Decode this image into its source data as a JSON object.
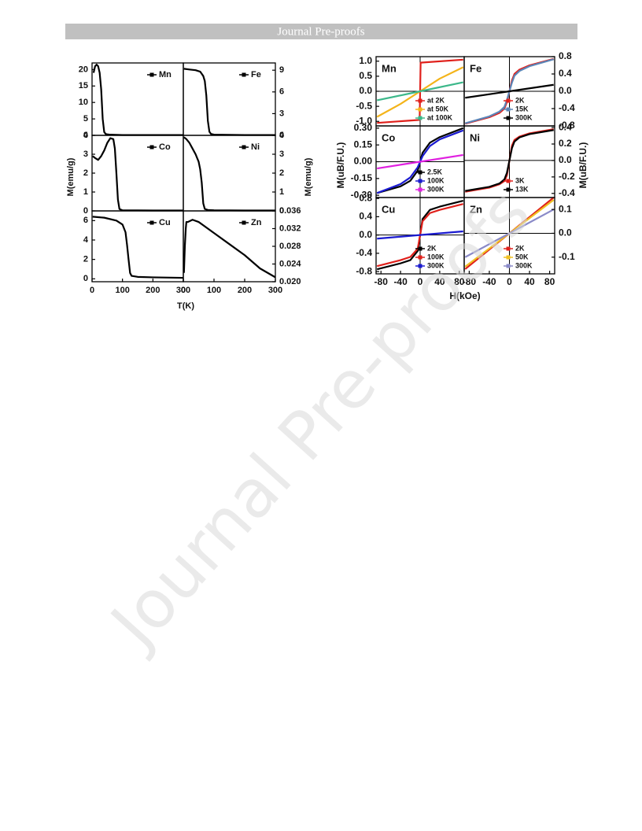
{
  "header": "Journal Pre-proofs",
  "watermark": "Journal Pre-proofs",
  "chart_data": [
    {
      "type": "line",
      "legend": "upper right",
      "xlim": [
        0,
        300
      ],
      "ylim": [
        0,
        22
      ],
      "yticks": [
        0,
        5,
        10,
        15,
        20
      ],
      "yaxis_side": "left",
      "series": [
        {
          "name": "Mn",
          "color": "#000000",
          "x": [
            5,
            10,
            15,
            20,
            25,
            30,
            35,
            40,
            45,
            50,
            60,
            100,
            200,
            300
          ],
          "values": [
            19,
            21,
            21.5,
            21,
            19,
            14,
            5,
            1,
            0.4,
            0.3,
            0.2,
            0.1,
            0.1,
            0.1
          ]
        }
      ]
    },
    {
      "type": "line",
      "legend": "upper right",
      "xlim": [
        0,
        300
      ],
      "ylim": [
        0,
        10
      ],
      "yticks": [
        0,
        3,
        6,
        9
      ],
      "yaxis_side": "right",
      "series": [
        {
          "name": "Fe",
          "color": "#000000",
          "x": [
            2,
            20,
            40,
            55,
            65,
            70,
            75,
            80,
            85,
            90,
            100,
            200,
            300
          ],
          "values": [
            9.2,
            9.1,
            9.0,
            8.8,
            8.2,
            7.5,
            5.5,
            2,
            0.5,
            0.2,
            0.1,
            0.05,
            0.05
          ]
        }
      ]
    },
    {
      "type": "line",
      "legend": "upper right",
      "xlim": [
        0,
        300
      ],
      "ylim": [
        0,
        4
      ],
      "yticks": [
        0,
        1,
        2,
        3,
        4
      ],
      "yaxis_side": "left",
      "ylabel": "M(emu/g)",
      "series": [
        {
          "name": "Co",
          "color": "#000000",
          "x": [
            2,
            10,
            20,
            30,
            40,
            50,
            60,
            70,
            75,
            80,
            85,
            90,
            100,
            200,
            300
          ],
          "values": [
            2.9,
            2.8,
            2.7,
            2.9,
            3.2,
            3.6,
            3.85,
            3.8,
            3.3,
            2,
            0.6,
            0.1,
            0.03,
            0.02,
            0.02
          ]
        }
      ]
    },
    {
      "type": "line",
      "legend": "upper right",
      "xlim": [
        0,
        300
      ],
      "ylim": [
        0,
        4
      ],
      "yticks": [
        0,
        1,
        2,
        3,
        4
      ],
      "yaxis_side": "right",
      "ylabel": "M(emu/g)",
      "series": [
        {
          "name": "Ni",
          "color": "#000000",
          "x": [
            2,
            10,
            20,
            30,
            40,
            50,
            55,
            60,
            65,
            70,
            80,
            100,
            200,
            300
          ],
          "values": [
            3.9,
            3.8,
            3.6,
            3.3,
            3.0,
            2.6,
            2.2,
            1.5,
            0.4,
            0.1,
            0.05,
            0.03,
            0.02,
            0.02
          ]
        }
      ]
    },
    {
      "type": "line",
      "legend": "upper right",
      "xlim": [
        0,
        300
      ],
      "xticks": [
        0,
        100,
        200,
        300
      ],
      "ylim": [
        -0.3,
        7
      ],
      "yticks": [
        0,
        2,
        4,
        6
      ],
      "yaxis_side": "left",
      "xlabel": "T(K)",
      "series": [
        {
          "name": "Cu",
          "color": "#000000",
          "x": [
            2,
            40,
            80,
            100,
            110,
            115,
            120,
            125,
            130,
            150,
            200,
            300
          ],
          "values": [
            6.4,
            6.3,
            6.0,
            5.6,
            4.8,
            3.5,
            2,
            0.6,
            0.3,
            0.2,
            0.15,
            0.1
          ]
        }
      ]
    },
    {
      "type": "line",
      "legend": "upper right",
      "xlim": [
        0,
        300
      ],
      "xticks": [
        0,
        100,
        200,
        300
      ],
      "ylim": [
        0.02,
        0.036
      ],
      "yaxis_side": "right",
      "yticks": [
        {
          "value": 0.02,
          "label": "0.020"
        },
        0.024,
        0.028,
        0.032,
        0.036
      ],
      "series": [
        {
          "name": "Zn",
          "color": "#000000",
          "x": [
            2,
            5,
            8,
            10,
            15,
            30,
            50,
            100,
            150,
            200,
            250,
            300
          ],
          "values": [
            0.022,
            0.028,
            0.032,
            0.0335,
            0.0335,
            0.034,
            0.0335,
            0.031,
            0.0285,
            0.026,
            0.023,
            0.021
          ]
        }
      ]
    },
    {
      "type": "line",
      "label": "Mn",
      "legend": "lower right",
      "zero_lines": true,
      "xlim": [
        -90,
        90
      ],
      "ylim": [
        -1.15,
        1.15
      ],
      "yaxis_side": "left",
      "yticks": [
        {
          "value": -1,
          "label": "-1.0"
        },
        -0.5,
        {
          "value": 0,
          "label": "0.0"
        },
        0.5,
        {
          "value": 1,
          "label": "1.0"
        }
      ],
      "series": [
        {
          "name": "at 2K",
          "color": "#e0201b",
          "x": [
            -88,
            -1,
            1,
            88
          ],
          "values": [
            -1.05,
            -0.95,
            0.95,
            1.05
          ]
        },
        {
          "name": "at 50K",
          "color": "#f4b41a",
          "x": [
            -88,
            -40,
            0,
            40,
            88
          ],
          "values": [
            -0.85,
            -0.42,
            0,
            0.42,
            0.8
          ]
        },
        {
          "name": "at 100K",
          "color": "#3cb88a",
          "x": [
            -88,
            0,
            88
          ],
          "values": [
            -0.3,
            0,
            0.3
          ]
        }
      ]
    },
    {
      "type": "line",
      "label": "Fe",
      "legend": "lower right",
      "zero_lines": true,
      "xlim": [
        -90,
        90
      ],
      "ylim": [
        -0.8,
        0.8
      ],
      "yaxis_side": "right",
      "yticks": [
        -0.8,
        -0.4,
        {
          "value": 0,
          "label": "0.0"
        },
        0.4,
        0.8
      ],
      "series": [
        {
          "name": "2K",
          "color": "#e0201b",
          "x": [
            -88,
            -40,
            -20,
            -10,
            -5,
            0,
            5,
            10,
            20,
            40,
            88
          ],
          "values": [
            -0.75,
            -0.6,
            -0.5,
            -0.4,
            -0.25,
            0,
            0.25,
            0.4,
            0.5,
            0.6,
            0.75
          ]
        },
        {
          "name": "15K",
          "color": "#5b86b8",
          "x": [
            -88,
            -40,
            -20,
            -10,
            -5,
            0,
            5,
            10,
            20,
            40,
            88
          ],
          "values": [
            -0.74,
            -0.58,
            -0.47,
            -0.36,
            -0.2,
            0,
            0.2,
            0.36,
            0.47,
            0.58,
            0.74
          ]
        },
        {
          "name": "300K",
          "color": "#000000",
          "x": [
            -88,
            0,
            88
          ],
          "values": [
            -0.15,
            0,
            0.15
          ]
        }
      ]
    },
    {
      "type": "line",
      "label": "Co",
      "legend": "lower right",
      "zero_lines": true,
      "xlim": [
        -90,
        90
      ],
      "ylim": [
        -0.32,
        0.32
      ],
      "yaxis_side": "left",
      "ylabel": "M(uB/F.U.)",
      "yticks": [
        {
          "value": -0.3,
          "label": "-0.30"
        },
        {
          "value": -0.15,
          "label": "-0.15"
        },
        {
          "value": 0,
          "label": "0.00"
        },
        {
          "value": 0.15,
          "label": "0.15"
        },
        {
          "value": 0.3,
          "label": "0.30"
        }
      ],
      "series": [
        {
          "name": "2.5K",
          "color": "#000000",
          "x": [
            -88,
            -40,
            -20,
            -5,
            0,
            5,
            20,
            40,
            88
          ],
          "values": [
            -0.28,
            -0.22,
            -0.17,
            -0.08,
            0,
            0.08,
            0.17,
            0.22,
            0.3
          ]
        },
        {
          "name": "100K",
          "color": "#1a1ad0",
          "x": [
            -88,
            -40,
            -20,
            -5,
            0,
            5,
            20,
            40,
            88
          ],
          "values": [
            -0.28,
            -0.2,
            -0.14,
            -0.05,
            0,
            0.05,
            0.14,
            0.2,
            0.28
          ]
        },
        {
          "name": "300K",
          "color": "#e020e0",
          "x": [
            -88,
            0,
            88
          ],
          "values": [
            -0.06,
            0,
            0.06
          ]
        }
      ]
    },
    {
      "type": "line",
      "label": "Ni",
      "legend": "lower right",
      "zero_lines": true,
      "xlim": [
        -90,
        90
      ],
      "ylim": [
        -0.45,
        0.42
      ],
      "yaxis_side": "right",
      "ylabel": "M(uB/F.U.)",
      "yticks": [
        -0.4,
        -0.2,
        {
          "value": 0,
          "label": "0.0"
        },
        0.2,
        0.4
      ],
      "series": [
        {
          "name": "3K",
          "color": "#e0201b",
          "x": [
            -88,
            -40,
            -20,
            -10,
            -5,
            0,
            5,
            10,
            20,
            40,
            88
          ],
          "values": [
            -0.38,
            -0.33,
            -0.29,
            -0.25,
            -0.18,
            0,
            0.18,
            0.25,
            0.29,
            0.33,
            0.38
          ]
        },
        {
          "name": "13K",
          "color": "#000000",
          "x": [
            -88,
            -40,
            -20,
            -10,
            -5,
            0,
            5,
            10,
            20,
            40,
            88
          ],
          "values": [
            -0.37,
            -0.32,
            -0.28,
            -0.23,
            -0.15,
            0,
            0.15,
            0.23,
            0.28,
            0.32,
            0.37
          ]
        }
      ]
    },
    {
      "type": "line",
      "label": "Cu",
      "legend": "lower right",
      "zero_lines": true,
      "xlim": [
        -90,
        90
      ],
      "xticks": [
        -80,
        -40,
        0,
        40,
        80
      ],
      "ylim": [
        -0.85,
        0.82
      ],
      "yaxis_side": "left",
      "xlabel": "H(kOe)",
      "yticks": [
        -0.8,
        -0.4,
        {
          "value": 0,
          "label": "0.0"
        },
        0.4,
        0.8
      ],
      "series": [
        {
          "name": "2K",
          "color": "#000000",
          "x": [
            -88,
            -40,
            -20,
            -5,
            0,
            5,
            20,
            40,
            88
          ],
          "values": [
            -0.75,
            -0.62,
            -0.55,
            -0.35,
            0,
            0.35,
            0.55,
            0.62,
            0.75
          ]
        },
        {
          "name": "100K",
          "color": "#e0201b",
          "x": [
            -88,
            -40,
            -20,
            -5,
            0,
            5,
            20,
            40,
            88
          ],
          "values": [
            -0.68,
            -0.55,
            -0.48,
            -0.3,
            0,
            0.3,
            0.48,
            0.55,
            0.68
          ]
        },
        {
          "name": "300K",
          "color": "#1a1ad0",
          "x": [
            -88,
            0,
            88
          ],
          "values": [
            -0.08,
            0,
            0.08
          ]
        }
      ]
    },
    {
      "type": "line",
      "label": "Zn",
      "legend": "lower right",
      "zero_lines": true,
      "xlim": [
        -90,
        90
      ],
      "xticks": [
        -80,
        -40,
        0,
        40,
        80
      ],
      "ylim": [
        -0.17,
        0.15
      ],
      "yaxis_side": "right",
      "yticks": [
        -0.1,
        {
          "value": 0,
          "label": "0.0"
        },
        0.1
      ],
      "series": [
        {
          "name": "2K",
          "color": "#e0201b",
          "x": [
            -88,
            0,
            88
          ],
          "values": [
            -0.15,
            0,
            0.15
          ]
        },
        {
          "name": "50K",
          "color": "#f0c020",
          "x": [
            -88,
            0,
            88
          ],
          "values": [
            -0.14,
            0,
            0.14
          ]
        },
        {
          "name": "300K",
          "color": "#8a8ac8",
          "x": [
            -88,
            0,
            88
          ],
          "values": [
            -0.1,
            0,
            0.1
          ]
        }
      ]
    }
  ]
}
